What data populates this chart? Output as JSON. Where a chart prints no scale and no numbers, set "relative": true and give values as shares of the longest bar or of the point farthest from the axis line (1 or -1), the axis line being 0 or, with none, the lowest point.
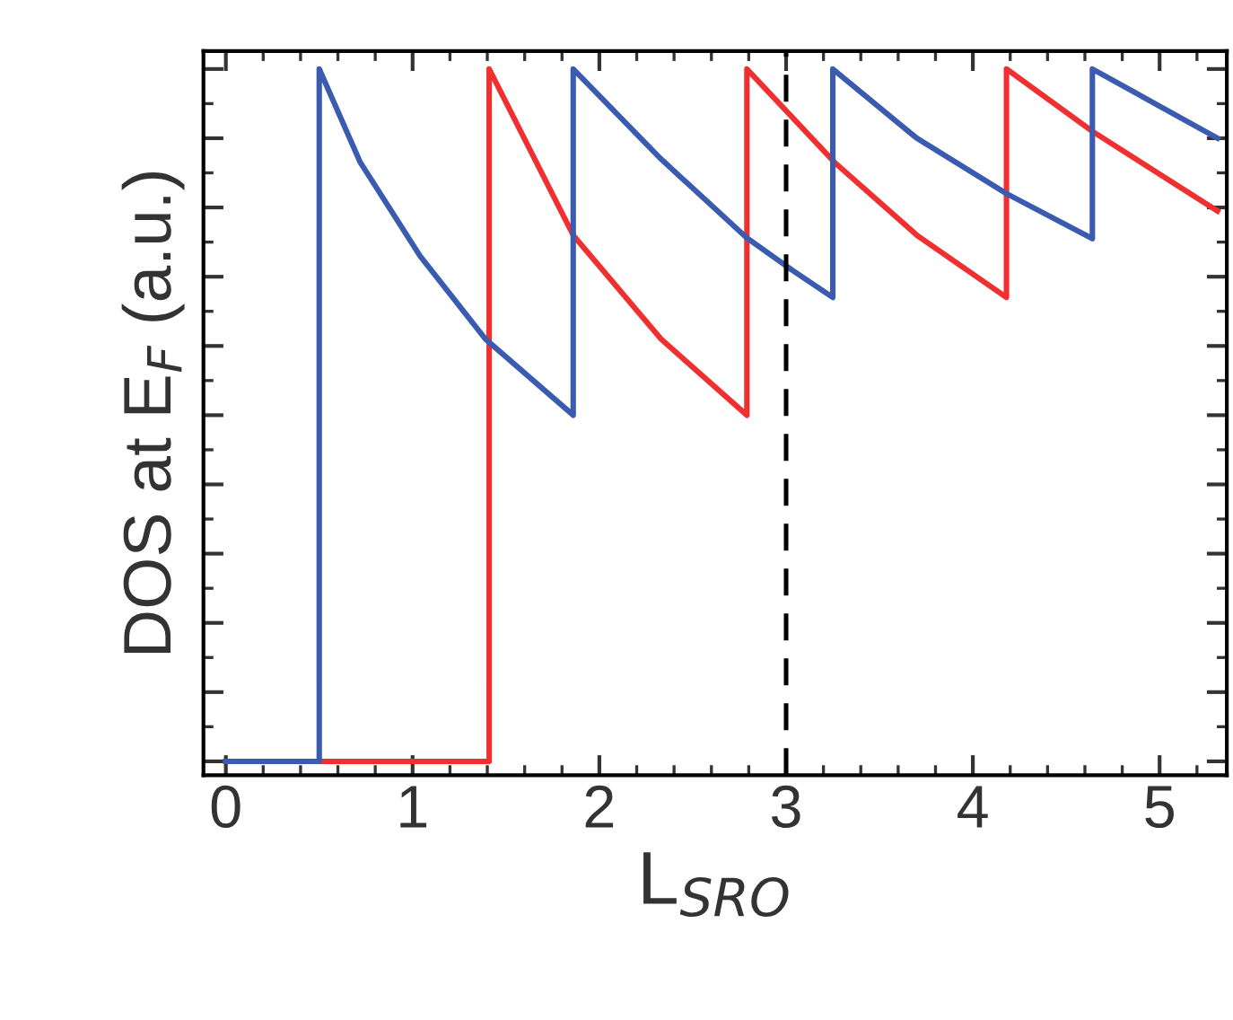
{
  "chart_data": {
    "type": "line",
    "relative": true,
    "xlabel": "L$_{SRO}$",
    "ylabel": "DOS at E$_{F}$ (a.u.)",
    "xlim": [
      -0.12,
      5.36
    ],
    "xticks": [
      0,
      1,
      2,
      3,
      4,
      5
    ],
    "tick_labels": "x",
    "grid": false,
    "legend": false,
    "line_style": "solid",
    "marker": "none",
    "ref_lines": [
      {
        "axis": "x",
        "value": 3,
        "color": "#000000",
        "line_style": "dashed"
      }
    ],
    "series": [
      {
        "color": "#f03030",
        "x": [
          0,
          1.41,
          1.41,
          1.86,
          2.33,
          2.79,
          2.79,
          3.26,
          3.7,
          4.18,
          4.18,
          4.64,
          5.31
        ],
        "values": [
          0,
          0,
          1,
          0.76,
          0.61,
          0.5,
          1,
          0.865,
          0.76,
          0.67,
          1,
          0.91,
          0.795
        ]
      },
      {
        "color": "#3a5bb0",
        "x": [
          0,
          0.5,
          0.5,
          0.72,
          1.04,
          1.39,
          1.86,
          1.86,
          2.33,
          2.79,
          3.03,
          3.25,
          3.25,
          3.7,
          4.18,
          4.64,
          4.64,
          5.31
        ],
        "values": [
          0,
          0,
          1,
          0.865,
          0.73,
          0.61,
          0.5,
          1,
          0.87,
          0.756,
          0.71,
          0.67,
          1,
          0.9,
          0.82,
          0.755,
          1,
          0.9
        ]
      }
    ]
  }
}
